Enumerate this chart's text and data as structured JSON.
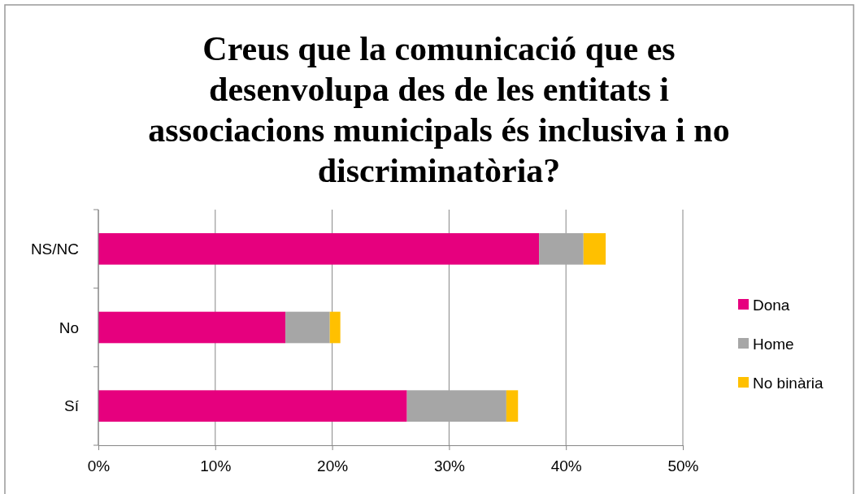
{
  "chart_data": {
    "type": "bar",
    "orientation": "horizontal",
    "stacked": true,
    "title": "Creus que la comunicació que es desenvolupa des de les entitats i associacions municipals és inclusiva i no discriminatòria?",
    "categories": [
      "NS/NC",
      "No",
      "Sí"
    ],
    "series": [
      {
        "name": "Dona",
        "color": "#e6007e",
        "values": [
          37.7,
          16.0,
          26.4
        ]
      },
      {
        "name": "Home",
        "color": "#a6a6a6",
        "values": [
          3.8,
          3.8,
          8.5
        ]
      },
      {
        "name": "No binària",
        "color": "#ffc000",
        "values": [
          1.9,
          0.9,
          1.0
        ]
      }
    ],
    "xlim": [
      0,
      50
    ],
    "xticks": [
      {
        "value": 0,
        "label": "0%"
      },
      {
        "value": 10,
        "label": "10%"
      },
      {
        "value": 20,
        "label": "20%"
      },
      {
        "value": 30,
        "label": "30%"
      },
      {
        "value": 40,
        "label": "40%"
      },
      {
        "value": 50,
        "label": "50%"
      }
    ],
    "grid": "x",
    "legend": "right"
  }
}
